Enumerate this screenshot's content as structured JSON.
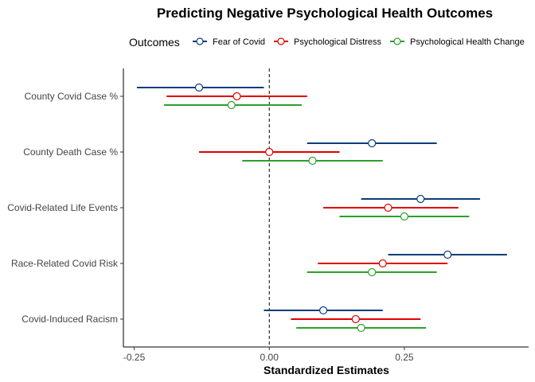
{
  "chart_data": {
    "type": "forest",
    "title": "Predicting Negative Psychological Health Outcomes",
    "xlabel": "Standardized Estimates",
    "ylabel": "",
    "xlim": [
      -0.27,
      0.48
    ],
    "x_ticks": [
      -0.25,
      0.0,
      0.25
    ],
    "x_tick_labels": [
      "-0.25",
      "0.00",
      "0.25"
    ],
    "reference_line": 0.0,
    "grid": false,
    "legend": {
      "title": "Outcomes",
      "position": "top"
    },
    "categories": [
      "County Covid Case %",
      "County Death Case %",
      "Covid-Related Life Events",
      "Race-Related Covid Risk",
      "Covid-Induced Racism"
    ],
    "series": [
      {
        "name": "Fear of Covid",
        "color": "#0b3d7a",
        "estimate": [
          -0.13,
          0.19,
          0.28,
          0.33,
          0.1
        ],
        "lower": [
          -0.245,
          0.07,
          0.17,
          0.22,
          -0.01
        ],
        "upper": [
          -0.01,
          0.31,
          0.39,
          0.44,
          0.21
        ]
      },
      {
        "name": "Psychological Distress",
        "color": "#e00000",
        "estimate": [
          -0.06,
          0.0,
          0.22,
          0.21,
          0.16
        ],
        "lower": [
          -0.19,
          -0.13,
          0.1,
          0.09,
          0.04
        ],
        "upper": [
          0.07,
          0.13,
          0.35,
          0.33,
          0.28
        ]
      },
      {
        "name": "Psychological Health Change",
        "color": "#2ca02c",
        "estimate": [
          -0.07,
          0.08,
          0.25,
          0.19,
          0.17
        ],
        "lower": [
          -0.195,
          -0.05,
          0.13,
          0.07,
          0.05
        ],
        "upper": [
          0.06,
          0.21,
          0.37,
          0.31,
          0.29
        ]
      }
    ]
  }
}
